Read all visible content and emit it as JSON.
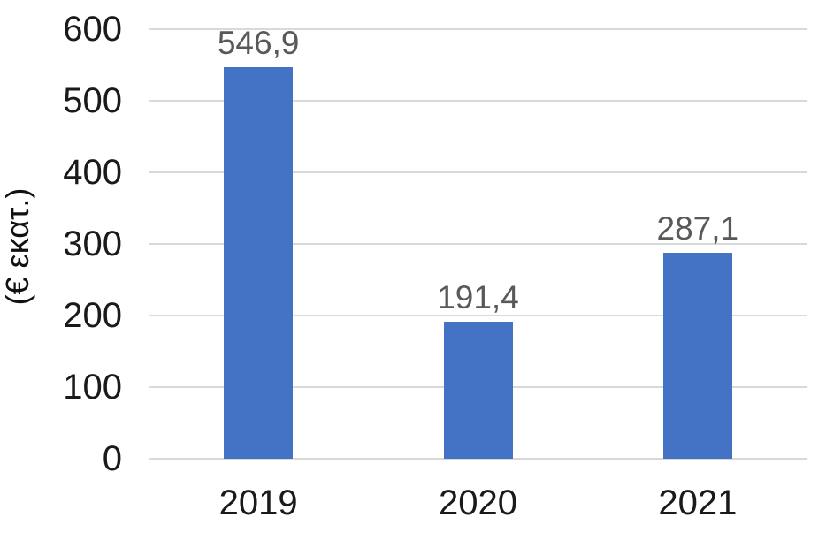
{
  "chart_data": {
    "type": "bar",
    "categories": [
      "2019",
      "2020",
      "2021"
    ],
    "values": [
      546.9,
      191.4,
      287.1
    ],
    "value_labels": [
      "546,9",
      "191,4",
      "287,1"
    ],
    "title": "",
    "xlabel": "",
    "ylabel": "(€ εκατ.)",
    "ylim": [
      0,
      600
    ],
    "ytick_step": 100,
    "ytick_labels": [
      "0",
      "100",
      "200",
      "300",
      "400",
      "500",
      "600"
    ],
    "grid": true,
    "legend": false,
    "bar_color": "#4472C4",
    "value_label_color": "#595959",
    "tick_label_color": "#1a1a1a",
    "gridline_color": "#d9d9d9"
  }
}
